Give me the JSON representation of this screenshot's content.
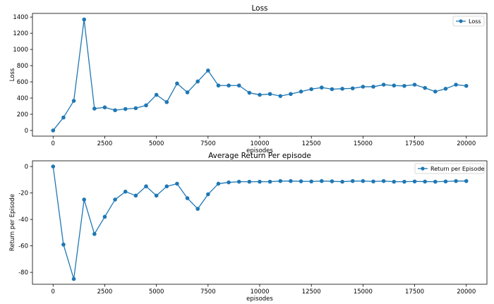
{
  "chart_data": [
    {
      "type": "line",
      "title": "Loss",
      "xlabel": "episodes",
      "ylabel": "Loss",
      "xlim": [
        -1000,
        21000
      ],
      "ylim": [
        -70,
        1445
      ],
      "xticks": [
        0,
        2500,
        5000,
        7500,
        10000,
        12500,
        15000,
        17500,
        20000
      ],
      "yticks": [
        0,
        200,
        400,
        600,
        800,
        1000,
        1200,
        1400
      ],
      "legend_position": "upper right",
      "grid": false,
      "color": "#1f77b4",
      "series": [
        {
          "name": "Loss",
          "x": [
            0,
            500,
            1000,
            1500,
            2000,
            2500,
            3000,
            3500,
            4000,
            4500,
            5000,
            5500,
            6000,
            6500,
            7000,
            7500,
            8000,
            8500,
            9000,
            9500,
            10000,
            10500,
            11000,
            11500,
            12000,
            12500,
            13000,
            13500,
            14000,
            14500,
            15000,
            15500,
            16000,
            16500,
            17000,
            17500,
            18000,
            18500,
            19000,
            19500,
            20000
          ],
          "values": [
            0,
            160,
            365,
            1370,
            270,
            285,
            250,
            265,
            275,
            310,
            440,
            350,
            580,
            470,
            605,
            740,
            555,
            555,
            555,
            465,
            440,
            450,
            425,
            450,
            480,
            510,
            530,
            510,
            515,
            520,
            540,
            540,
            565,
            555,
            550,
            565,
            525,
            480,
            515,
            565,
            550
          ]
        }
      ]
    },
    {
      "type": "line",
      "title": "Average Return Per episode",
      "xlabel": "episodes",
      "ylabel": "Return per Episode",
      "xlim": [
        -1000,
        21000
      ],
      "ylim": [
        -89,
        4.3
      ],
      "xticks": [
        0,
        2500,
        5000,
        7500,
        10000,
        12500,
        15000,
        17500,
        20000
      ],
      "yticks": [
        0,
        -20,
        -40,
        -60,
        -80
      ],
      "legend_position": "upper right",
      "grid": false,
      "color": "#1f77b4",
      "series": [
        {
          "name": "Return per Episode",
          "x": [
            0,
            500,
            1000,
            1500,
            2000,
            2500,
            3000,
            3500,
            4000,
            4500,
            5000,
            5500,
            6000,
            6500,
            7000,
            7500,
            8000,
            8500,
            9000,
            9500,
            10000,
            10500,
            11000,
            11500,
            12000,
            12500,
            13000,
            13500,
            14000,
            14500,
            15000,
            15500,
            16000,
            16500,
            17000,
            17500,
            18000,
            18500,
            19000,
            19500,
            20000
          ],
          "values": [
            0,
            -59,
            -85,
            -25,
            -51,
            -38,
            -25,
            -19,
            -22,
            -15,
            -22,
            -15,
            -13,
            -24,
            -32,
            -21,
            -13,
            -12,
            -11.5,
            -11.5,
            -11.5,
            -11.5,
            -11,
            -11,
            -11.2,
            -11.3,
            -11,
            -11.2,
            -11.5,
            -11,
            -11,
            -11.3,
            -11,
            -11.5,
            -11.5,
            -11.3,
            -11.4,
            -11.5,
            -11.3,
            -11,
            -11
          ]
        }
      ]
    }
  ]
}
